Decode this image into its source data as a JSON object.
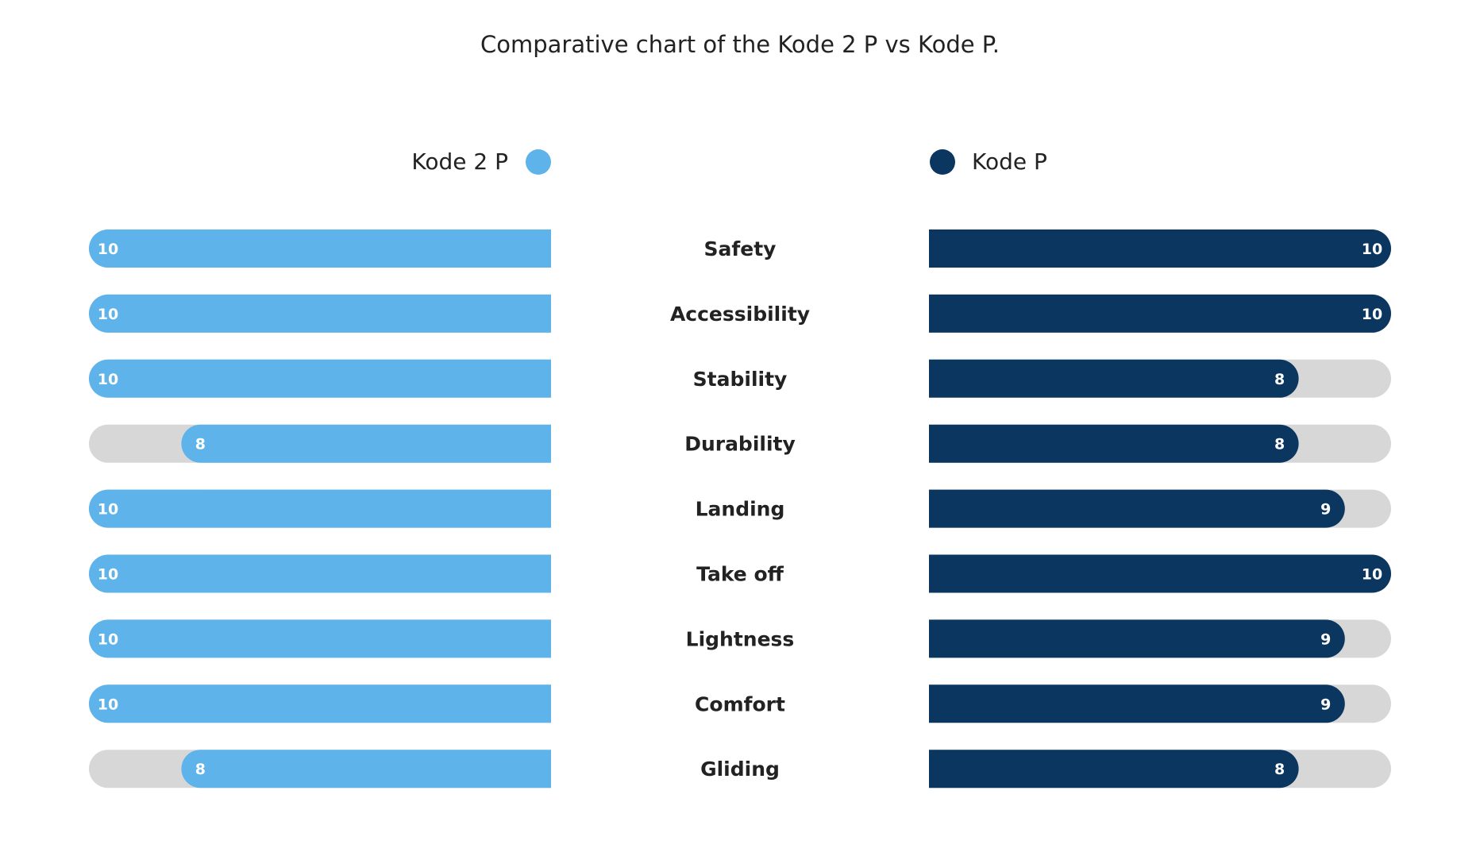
{
  "chart_data": {
    "type": "bar",
    "title": "Comparative chart of the Kode 2 P vs Kode P.",
    "xlabel": "",
    "ylabel": "",
    "xlim": [
      0,
      10
    ],
    "grid": false,
    "legend": "top",
    "categories": [
      "Safety",
      "Accessibility",
      "Stability",
      "Durability",
      "Landing",
      "Take off",
      "Lightness",
      "Comfort",
      "Gliding"
    ],
    "series": [
      {
        "name": "Kode 2 P",
        "color": "#5DB3EA",
        "side": "left",
        "values": [
          10,
          10,
          10,
          8,
          10,
          10,
          10,
          10,
          8
        ]
      },
      {
        "name": "Kode P",
        "color": "#0A365F",
        "side": "right",
        "values": [
          10,
          10,
          8,
          8,
          9,
          10,
          9,
          9,
          8
        ]
      }
    ],
    "track_color": "#D7D7D7",
    "value_label_color": "#FFFFFF"
  }
}
